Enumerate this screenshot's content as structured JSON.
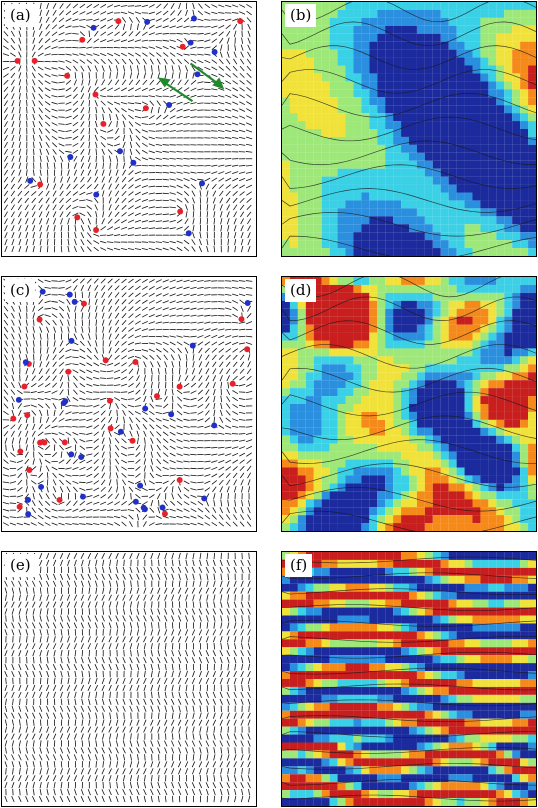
{
  "panels": [
    {
      "id": "a",
      "label": "(a)",
      "kind": "director-field-defects"
    },
    {
      "id": "b",
      "label": "(b)",
      "kind": "vorticity-map-streamlines"
    },
    {
      "id": "c",
      "label": "(c)",
      "kind": "director-field-defects"
    },
    {
      "id": "d",
      "label": "(d)",
      "kind": "vorticity-map-streamlines"
    },
    {
      "id": "e",
      "label": "(e)",
      "kind": "director-field-aligned"
    },
    {
      "id": "f",
      "label": "(f)",
      "kind": "vorticity-map-stripes"
    }
  ],
  "colors": {
    "positive_defect": "#e8202a",
    "negative_defect": "#2030c8",
    "director": "#111111",
    "arrow": "#1f8a2a",
    "colormap": [
      "#1b2a9c",
      "#2b8fe0",
      "#3ad0e6",
      "#9ee87a",
      "#f0e23a",
      "#f58a1a",
      "#c81e1e"
    ]
  }
}
